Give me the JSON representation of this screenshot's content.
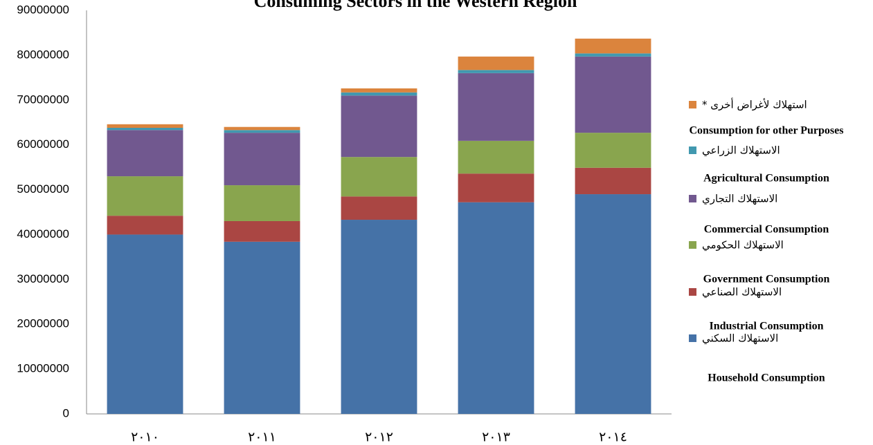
{
  "chart_data": {
    "type": "stacked_bar",
    "title": "Consuming Sectors in the Western Region",
    "categories": [
      "٢٠١٠",
      "٢٠١١",
      "٢٠١٢",
      "٢٠١٣",
      "٢٠١٤"
    ],
    "series": [
      {
        "name": "الاستهلاك السكني",
        "name_en": "Household Consumption",
        "color": "#4572a7",
        "values": [
          40000000,
          38400000,
          43300000,
          47200000,
          49000000
        ]
      },
      {
        "name": "الاستهلاك الصناعي",
        "name_en": "Industrial Consumption",
        "color": "#aa4643",
        "values": [
          4200000,
          4600000,
          5200000,
          6400000,
          5900000
        ]
      },
      {
        "name": "الاستهلاك الحكومي",
        "name_en": "Government Consumption",
        "color": "#89a54e",
        "values": [
          8800000,
          8000000,
          8800000,
          7300000,
          7800000
        ]
      },
      {
        "name": "الاستهلاك التجاري",
        "name_en": "Commercial Consumption",
        "color": "#71588f",
        "values": [
          10300000,
          11700000,
          13700000,
          15100000,
          17000000
        ]
      },
      {
        "name": "الاستهلاك الزراعي",
        "name_en": "Agricultural Consumption",
        "color": "#4198af",
        "values": [
          500000,
          600000,
          700000,
          700000,
          700000
        ]
      },
      {
        "name": "استهلاك لأغراض أخرى *",
        "name_en": "Consumption for other Purposes",
        "color": "#db843d",
        "values": [
          800000,
          700000,
          900000,
          3000000,
          3300000
        ]
      }
    ],
    "ylim": [
      0,
      90000000
    ],
    "yticks": [
      0,
      10000000,
      20000000,
      30000000,
      40000000,
      50000000,
      60000000,
      70000000,
      80000000,
      90000000
    ],
    "grid": false,
    "legend": "right"
  }
}
